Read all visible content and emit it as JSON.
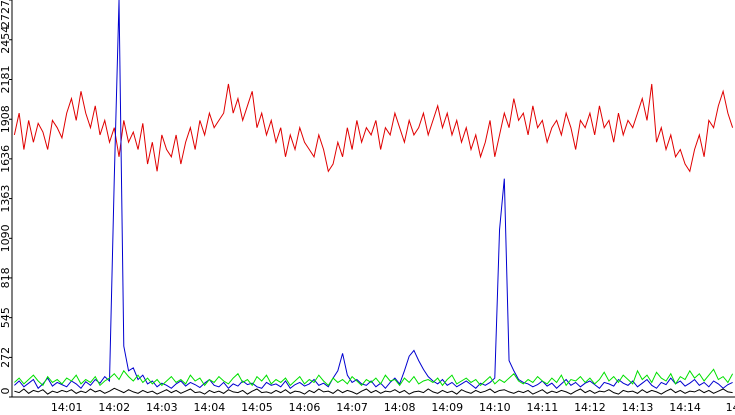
{
  "chart_data": {
    "type": "line",
    "categories": [
      null,
      null,
      null,
      null,
      null,
      null,
      null,
      null,
      null,
      null,
      null,
      "14:01",
      null,
      null,
      null,
      null,
      null,
      null,
      null,
      null,
      null,
      "14:02",
      null,
      null,
      null,
      null,
      null,
      null,
      null,
      null,
      null,
      "14:03",
      null,
      null,
      null,
      null,
      null,
      null,
      null,
      null,
      null,
      "14:04",
      null,
      null,
      null,
      null,
      null,
      null,
      null,
      null,
      null,
      "14:05",
      null,
      null,
      null,
      null,
      null,
      null,
      null,
      null,
      null,
      "14:06",
      null,
      null,
      null,
      null,
      null,
      null,
      null,
      null,
      null,
      "14:07",
      null,
      null,
      null,
      null,
      null,
      null,
      null,
      null,
      null,
      "14:08",
      null,
      null,
      null,
      null,
      null,
      null,
      null,
      null,
      null,
      "14:09",
      null,
      null,
      null,
      null,
      null,
      null,
      null,
      null,
      null,
      "14:10",
      null,
      null,
      null,
      null,
      null,
      null,
      null,
      null,
      null,
      "14:11",
      null,
      null,
      null,
      null,
      null,
      null,
      null,
      null,
      null,
      "14:12",
      null,
      null,
      null,
      null,
      null,
      null,
      null,
      null,
      null,
      "14:13",
      null,
      null,
      null,
      null,
      null,
      null,
      null,
      null,
      null,
      "14:14",
      null,
      null,
      null,
      null,
      null,
      null,
      null,
      null,
      null,
      "14"
    ],
    "series": [
      {
        "color": "#e00000",
        "values": [
          1800,
          1950,
          1700,
          1900,
          1750,
          1880,
          1820,
          1700,
          1900,
          1850,
          1780,
          1950,
          2050,
          1900,
          2100,
          1950,
          1850,
          2000,
          1800,
          1900,
          1750,
          1850,
          1650,
          1900,
          1750,
          1820,
          1700,
          1880,
          1600,
          1750,
          1550,
          1800,
          1700,
          1650,
          1800,
          1600,
          1750,
          1850,
          1700,
          1900,
          1800,
          1950,
          1850,
          1900,
          1950,
          2150,
          1950,
          2050,
          1900,
          2000,
          2100,
          1850,
          1950,
          1800,
          1900,
          1750,
          1850,
          1650,
          1800,
          1700,
          1850,
          1750,
          1700,
          1650,
          1800,
          1700,
          1550,
          1600,
          1750,
          1650,
          1850,
          1700,
          1900,
          1750,
          1850,
          1800,
          1900,
          1700,
          1850,
          1800,
          1950,
          1850,
          1750,
          1900,
          1800,
          1850,
          1950,
          1800,
          1900,
          2000,
          1850,
          1950,
          1800,
          1900,
          1750,
          1850,
          1700,
          1800,
          1650,
          1750,
          1900,
          1650,
          1800,
          1950,
          1850,
          2050,
          1900,
          1950,
          1800,
          2000,
          1850,
          1900,
          1750,
          1850,
          1900,
          1800,
          1950,
          1850,
          1700,
          1900,
          1850,
          1950,
          1800,
          2000,
          1850,
          1900,
          1750,
          1950,
          1800,
          1900,
          1850,
          1950,
          2050,
          1900,
          2150,
          1750,
          1850,
          1700,
          1800,
          1650,
          1700,
          1600,
          1550,
          1700,
          1800,
          1650,
          1900,
          1850,
          2000,
          2100,
          1950,
          1850
        ]
      },
      {
        "color": "#0000d0",
        "values": [
          80,
          110,
          70,
          95,
          120,
          60,
          90,
          130,
          75,
          100,
          85,
          70,
          110,
          90,
          60,
          105,
          80,
          120,
          95,
          140,
          110,
          1500,
          2727,
          350,
          180,
          200,
          120,
          150,
          90,
          110,
          70,
          95,
          80,
          60,
          90,
          110,
          75,
          100,
          85,
          65,
          95,
          120,
          80,
          70,
          100,
          60,
          90,
          75,
          110,
          85,
          95,
          70,
          60,
          100,
          80,
          90,
          70,
          110,
          60,
          85,
          100,
          75,
          90,
          120,
          80,
          95,
          70,
          130,
          180,
          300,
          150,
          100,
          120,
          90,
          80,
          110,
          70,
          95,
          60,
          100,
          130,
          90,
          180,
          280,
          320,
          250,
          190,
          140,
          110,
          90,
          120,
          80,
          100,
          70,
          90,
          110,
          85,
          60,
          95,
          80,
          100,
          130,
          1150,
          1500,
          250,
          180,
          120,
          100,
          90,
          70,
          85,
          110,
          75,
          95,
          60,
          90,
          120,
          80,
          100,
          70,
          95,
          110,
          85,
          60,
          100,
          90,
          75,
          120,
          95,
          80,
          110,
          70,
          95,
          120,
          80,
          60,
          100,
          85,
          130,
          90,
          110,
          75,
          95,
          120,
          80,
          100,
          70,
          110,
          90,
          60,
          85,
          100
        ]
      },
      {
        "color": "#00e000",
        "values": [
          100,
          130,
          90,
          120,
          150,
          110,
          80,
          140,
          100,
          120,
          90,
          130,
          110,
          150,
          90,
          120,
          100,
          140,
          80,
          110,
          130,
          160,
          120,
          180,
          140,
          110,
          150,
          100,
          130,
          90,
          120,
          80,
          110,
          140,
          100,
          120,
          90,
          150,
          110,
          130,
          80,
          120,
          100,
          140,
          110,
          90,
          130,
          160,
          100,
          120,
          80,
          140,
          110,
          150,
          90,
          120,
          100,
          130,
          80,
          110,
          140,
          90,
          120,
          100,
          150,
          110,
          80,
          130,
          100,
          120,
          90,
          140,
          110,
          80,
          120,
          100,
          130,
          90,
          150,
          110,
          120,
          80,
          130,
          100,
          140,
          90,
          110,
          120,
          100,
          130,
          80,
          120,
          150,
          90,
          110,
          130,
          100,
          120,
          80,
          110,
          140,
          90,
          120,
          100,
          130,
          160,
          110,
          90,
          120,
          100,
          140,
          110,
          90,
          130,
          100,
          150,
          80,
          120,
          110,
          140,
          100,
          130,
          90,
          120,
          170,
          110,
          140,
          100,
          150,
          120,
          90,
          180,
          120,
          150,
          100,
          170,
          130,
          110,
          160,
          90,
          140,
          120,
          180,
          130,
          160,
          110,
          150,
          190,
          120,
          140,
          100,
          160
        ]
      },
      {
        "color": "#000000",
        "values": [
          40,
          30,
          55,
          25,
          45,
          35,
          50,
          20,
          40,
          30,
          45,
          35,
          50,
          25,
          40,
          30,
          55,
          35,
          45,
          25,
          40,
          60,
          45,
          30,
          50,
          35,
          25,
          45,
          30,
          40,
          20,
          35,
          50,
          30,
          45,
          25,
          40,
          55,
          30,
          35,
          20,
          45,
          30,
          40,
          25,
          50,
          35,
          30,
          45,
          20,
          40,
          55,
          30,
          35,
          25,
          45,
          30,
          50,
          25,
          40,
          35,
          20,
          45,
          30,
          55,
          35,
          40,
          25,
          50,
          30,
          45,
          35,
          20,
          40,
          55,
          30,
          45,
          25,
          40,
          35,
          50,
          30,
          45,
          20,
          35,
          40,
          30,
          55,
          35,
          25,
          45,
          30,
          40,
          20,
          50,
          35,
          25,
          45,
          30,
          40,
          55,
          30,
          45,
          50,
          35,
          25,
          40,
          30,
          45,
          20,
          35,
          50,
          25,
          40,
          30,
          45,
          35,
          20,
          40,
          55,
          30,
          45,
          25,
          40,
          35,
          50,
          30,
          20,
          45,
          35,
          40,
          25,
          50,
          30,
          45,
          35,
          20,
          40,
          55,
          30,
          45,
          25,
          40,
          35,
          50,
          30,
          45,
          25,
          40,
          55,
          35,
          30
        ]
      }
    ],
    "ylim": [
      0,
      2727
    ],
    "yticks": [
      0,
      272,
      545,
      818,
      1090,
      1363,
      1636,
      1908,
      2181,
      2454,
      2727
    ]
  }
}
